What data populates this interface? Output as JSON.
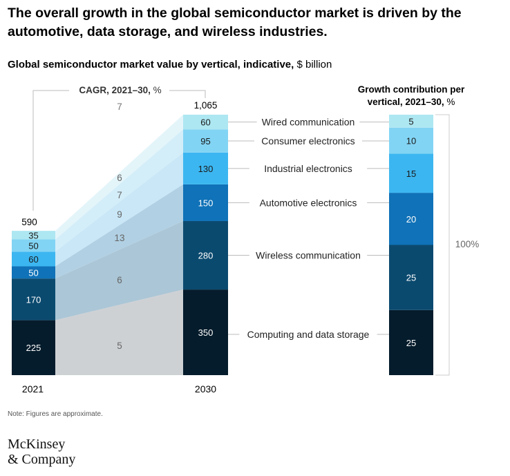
{
  "headline": "The overall growth in the global semiconductor market is driven by the automotive, data storage, and wireless industries.",
  "subtitle_bold": "Global semiconductor market value by vertical, indicative,",
  "subtitle_unit": "$ billion",
  "colors": {
    "computing": "#051c2c",
    "wireless": "#0b4a6f",
    "automotive": "#1072b8",
    "industrial": "#3cb6f0",
    "consumer": "#82d4f4",
    "wired": "#ade7f2",
    "text": "#000000",
    "muted": "#666666"
  },
  "chart_data": [
    {
      "type": "bar",
      "title": "Global semiconductor market value by vertical, indicative, $ billion",
      "categories": [
        "2021",
        "2030"
      ],
      "totals": [
        "590",
        "1,065"
      ],
      "cagr_label_bold": "CAGR, 2021–30,",
      "cagr_label_unit": "%",
      "cagr_total": "7",
      "series": [
        {
          "name": "Computing and data storage",
          "key": "computing",
          "values": [
            225,
            350
          ],
          "cagr": "5"
        },
        {
          "name": "Wireless communication",
          "key": "wireless",
          "values": [
            170,
            280
          ],
          "cagr": "6"
        },
        {
          "name": "Automotive electronics",
          "key": "automotive",
          "values": [
            50,
            150
          ],
          "cagr": "13"
        },
        {
          "name": "Industrial electronics",
          "key": "industrial",
          "values": [
            60,
            130
          ],
          "cagr": "9"
        },
        {
          "name": "Consumer electronics",
          "key": "consumer",
          "values": [
            50,
            95
          ],
          "cagr": "7"
        },
        {
          "name": "Wired communication",
          "key": "wired",
          "values": [
            35,
            60
          ],
          "cagr": "6"
        }
      ]
    },
    {
      "type": "bar",
      "title_bold_line1": "Growth contribution per",
      "title_bold_line2": "vertical, 2021–30,",
      "title_unit": "%",
      "total_label": "100%",
      "series": [
        {
          "name": "Computing and data storage",
          "key": "computing",
          "value": 25
        },
        {
          "name": "Wireless communication",
          "key": "wireless",
          "value": 25
        },
        {
          "name": "Automotive electronics",
          "key": "automotive",
          "value": 20
        },
        {
          "name": "Industrial electronics",
          "key": "industrial",
          "value": 15
        },
        {
          "name": "Consumer electronics",
          "key": "consumer",
          "value": 10
        },
        {
          "name": "Wired communication",
          "key": "wired",
          "value": 5
        }
      ]
    }
  ],
  "note": "Note: Figures are approximate.",
  "logo": {
    "line1": "McKinsey",
    "line2": "& Company"
  }
}
